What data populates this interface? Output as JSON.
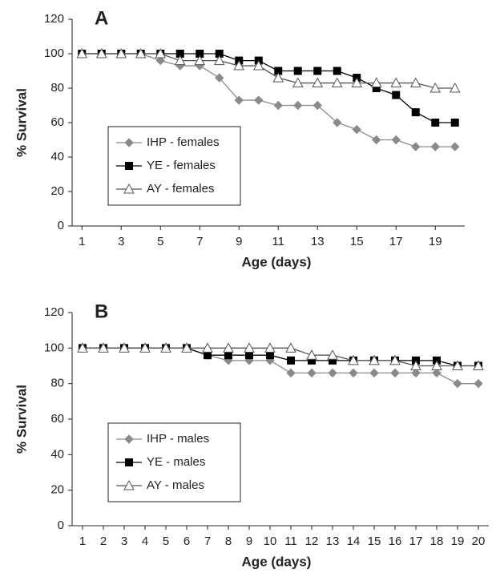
{
  "chart_data": [
    {
      "type": "line",
      "title": "A",
      "x_label": "Age (days)",
      "y_label": "% Survival",
      "x": [
        1,
        2,
        3,
        4,
        5,
        6,
        7,
        8,
        9,
        10,
        11,
        12,
        13,
        14,
        15,
        16,
        17,
        18,
        19,
        20
      ],
      "xlim": [
        0.5,
        20.5
      ],
      "xticks": [
        1,
        3,
        5,
        7,
        9,
        11,
        13,
        15,
        17,
        19
      ],
      "ylim": [
        0,
        120
      ],
      "yticks": [
        0,
        20,
        40,
        60,
        80,
        100,
        120
      ],
      "legend": "center left",
      "series": [
        {
          "name": "IHP - females",
          "color": "#8a8a8a",
          "marker": "diamond",
          "values": [
            100,
            100,
            100,
            100,
            96,
            93,
            93,
            86,
            73,
            73,
            70,
            70,
            70,
            60,
            56,
            50,
            50,
            46,
            46,
            46
          ]
        },
        {
          "name": "YE - females",
          "color": "#000000",
          "marker": "square",
          "values": [
            100,
            100,
            100,
            100,
            100,
            100,
            100,
            100,
            96,
            96,
            90,
            90,
            90,
            90,
            86,
            80,
            76,
            66,
            60,
            60
          ]
        },
        {
          "name": "AY - females",
          "color": "#555555",
          "marker": "open-triangle",
          "values": [
            100,
            100,
            100,
            100,
            100,
            96,
            96,
            96,
            93,
            93,
            86,
            83,
            83,
            83,
            83,
            83,
            83,
            83,
            80,
            80
          ]
        }
      ]
    },
    {
      "type": "line",
      "title": "B",
      "x_label": "Age (days)",
      "y_label": "% Survival",
      "x": [
        1,
        2,
        3,
        4,
        5,
        6,
        7,
        8,
        9,
        10,
        11,
        12,
        13,
        14,
        15,
        16,
        17,
        18,
        19,
        20
      ],
      "xlim": [
        0.5,
        20.5
      ],
      "xticks": [
        1,
        2,
        3,
        4,
        5,
        6,
        7,
        8,
        9,
        10,
        11,
        12,
        13,
        14,
        15,
        16,
        17,
        18,
        19,
        20
      ],
      "ylim": [
        0,
        120
      ],
      "yticks": [
        0,
        20,
        40,
        60,
        80,
        100,
        120
      ],
      "legend": "center left",
      "series": [
        {
          "name": "IHP - males",
          "color": "#8a8a8a",
          "marker": "diamond",
          "values": [
            100,
            100,
            100,
            100,
            100,
            100,
            96,
            93,
            93,
            93,
            86,
            86,
            86,
            86,
            86,
            86,
            86,
            86,
            80,
            80
          ]
        },
        {
          "name": "YE - males",
          "color": "#000000",
          "marker": "square",
          "values": [
            100,
            100,
            100,
            100,
            100,
            100,
            96,
            96,
            96,
            96,
            93,
            93,
            93,
            93,
            93,
            93,
            93,
            93,
            90,
            90
          ]
        },
        {
          "name": "AY - males",
          "color": "#555555",
          "marker": "open-triangle",
          "values": [
            100,
            100,
            100,
            100,
            100,
            100,
            100,
            100,
            100,
            100,
            100,
            96,
            96,
            93,
            93,
            93,
            90,
            90,
            90,
            90
          ]
        }
      ]
    }
  ]
}
